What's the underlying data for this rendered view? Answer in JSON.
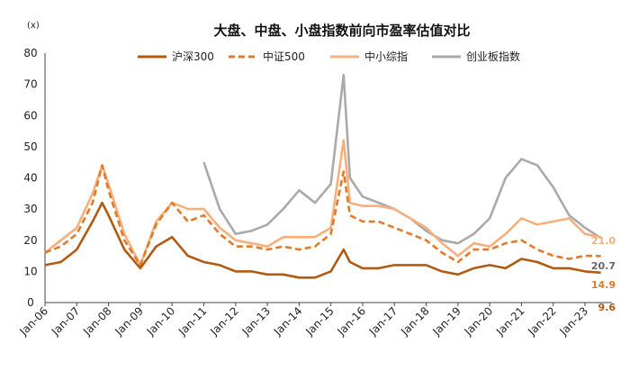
{
  "chart_data": {
    "type": "line",
    "title": "大盘、中盘、小盘指数前向市盈率估值对比",
    "ylabel": "(x)",
    "xlabel": "",
    "ylim": [
      0,
      80
    ],
    "yticks": [
      "0",
      "10",
      "20",
      "30",
      "40",
      "50",
      "60",
      "70",
      "80"
    ],
    "grid": false,
    "legend_position": "top",
    "xticks": [
      "Jan-06",
      "Jan-07",
      "Jan-08",
      "Jan-09",
      "Jan-10",
      "Jan-11",
      "Jan-12",
      "Jan-13",
      "Jan-14",
      "Jan-15",
      "Jan-16",
      "Jan-17",
      "Jan-18",
      "Jan-19",
      "Jan-20",
      "Jan-21",
      "Jan-22",
      "Jan-23"
    ],
    "x": [
      2006.0,
      2006.5,
      2007.0,
      2007.5,
      2007.8,
      2008.0,
      2008.5,
      2009.0,
      2009.5,
      2010.0,
      2010.5,
      2011.0,
      2011.5,
      2012.0,
      2012.5,
      2013.0,
      2013.5,
      2014.0,
      2014.5,
      2015.0,
      2015.4,
      2015.6,
      2016.0,
      2016.5,
      2017.0,
      2017.5,
      2018.0,
      2018.5,
      2019.0,
      2019.5,
      2020.0,
      2020.5,
      2021.0,
      2021.5,
      2022.0,
      2022.5,
      2023.0,
      2023.5
    ],
    "series": [
      {
        "name": "沪深300",
        "color": "#b35a12",
        "dash": "solid",
        "values": [
          12,
          13,
          17,
          26,
          32,
          28,
          17,
          11,
          18,
          21,
          15,
          13,
          12,
          10,
          10,
          9,
          9,
          8,
          8,
          10,
          17,
          13,
          11,
          11,
          12,
          12,
          12,
          10,
          9,
          11,
          12,
          11,
          14,
          13,
          11,
          11,
          10,
          9.6
        ],
        "end_label": "9.6"
      },
      {
        "name": "中证500",
        "color": "#e27a2a",
        "dash": "dash",
        "values": [
          16,
          18,
          22,
          32,
          44,
          36,
          20,
          12,
          25,
          32,
          26,
          28,
          22,
          18,
          18,
          17,
          18,
          17,
          18,
          22,
          42,
          28,
          26,
          26,
          24,
          22,
          20,
          16,
          13,
          17,
          17,
          19,
          20,
          17,
          15,
          14,
          15,
          14.9
        ],
        "end_label": "14.9"
      },
      {
        "name": "中小综指",
        "color": "#f5b07e",
        "dash": "solid",
        "values": [
          16,
          20,
          24,
          35,
          44,
          38,
          22,
          12,
          26,
          32,
          30,
          30,
          24,
          20,
          19,
          18,
          21,
          21,
          21,
          24,
          52,
          32,
          31,
          31,
          30,
          27,
          24,
          19,
          15,
          19,
          18,
          22,
          27,
          25,
          26,
          27,
          22,
          21.0
        ],
        "end_label": "21.0"
      },
      {
        "name": "创业板指数",
        "color": "#aaaaaa",
        "dash": "solid",
        "values": [
          null,
          null,
          null,
          null,
          null,
          null,
          null,
          null,
          null,
          null,
          null,
          45,
          30,
          22,
          23,
          25,
          30,
          36,
          32,
          38,
          73,
          40,
          34,
          32,
          30,
          27,
          23,
          20,
          19,
          22,
          27,
          40,
          46,
          44,
          37,
          28,
          24,
          20.7
        ],
        "end_label": "20.7"
      }
    ]
  }
}
